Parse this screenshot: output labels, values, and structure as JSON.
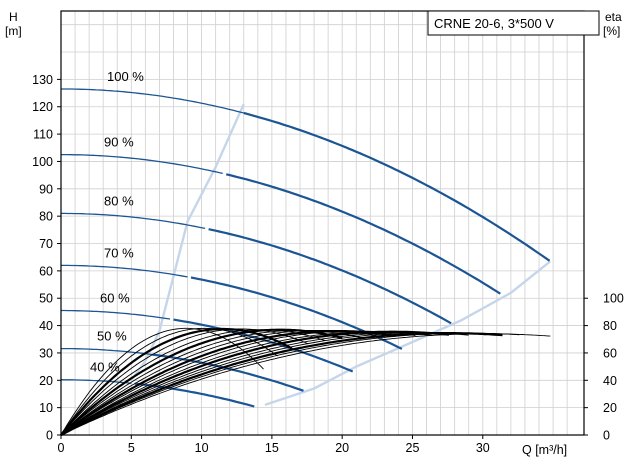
{
  "chart_data": {
    "type": "line",
    "legend": "CRNE 20-6, 3*500 V",
    "legend_position": "top-right",
    "grid": true,
    "xlabel": "Q [m³/h]",
    "ylabel_left_1": "H",
    "ylabel_left_2": "[m]",
    "ylabel_right_1": "eta",
    "ylabel_right_2": "[%]",
    "xlim": [
      0,
      37.2
    ],
    "ylim": [
      0,
      155
    ],
    "x_ticks": [
      0,
      5,
      10,
      15,
      20,
      25,
      30
    ],
    "y_ticks": [
      0,
      10,
      20,
      30,
      40,
      50,
      60,
      70,
      80,
      90,
      100,
      110,
      120,
      130
    ],
    "eta_ticks": [
      {
        "eta": 0,
        "h": 0
      },
      {
        "eta": 20,
        "h": 10
      },
      {
        "eta": 40,
        "h": 20
      },
      {
        "eta": 60,
        "h": 30
      },
      {
        "eta": 80,
        "h": 40
      },
      {
        "eta": 100,
        "h": 50
      }
    ],
    "head_series": [
      {
        "name": "100 %",
        "h0": 126.5,
        "qmax": 34.8,
        "hmax": 63.5,
        "qb": 13
      },
      {
        "name": "90 %",
        "h0": 102.5,
        "qmax": 31.3,
        "hmax": 51.5,
        "qb": 11.7
      },
      {
        "name": "80 %",
        "h0": 81,
        "qmax": 27.8,
        "hmax": 40.7,
        "qb": 10.4
      },
      {
        "name": "70 %",
        "h0": 62,
        "qmax": 24.4,
        "hmax": 31.1,
        "qb": 9.1
      },
      {
        "name": "60 %",
        "h0": 45.5,
        "qmax": 20.9,
        "hmax": 22.9,
        "qb": 7.8
      },
      {
        "name": "50 %",
        "h0": 31.6,
        "qmax": 17.4,
        "hmax": 15.9,
        "qb": 6.5
      },
      {
        "name": "40 %",
        "h0": 20.2,
        "qmax": 13.9,
        "hmax": 10.2,
        "qb": 5.2
      }
    ],
    "limit_curves": [
      {
        "name": "min-speed-flow",
        "points": [
          [
            13,
            121
          ],
          [
            11,
            98
          ],
          [
            9,
            78
          ],
          [
            8,
            58
          ],
          [
            7,
            38
          ],
          [
            6,
            27
          ],
          [
            5,
            20
          ]
        ]
      },
      {
        "name": "max-flow",
        "points": [
          [
            14.5,
            11
          ],
          [
            18,
            17
          ],
          [
            21,
            25
          ],
          [
            25,
            34
          ],
          [
            28.5,
            42
          ],
          [
            32,
            52
          ],
          [
            34.8,
            63.5
          ]
        ]
      }
    ],
    "eta_series": [
      {
        "peak_q": 8.9,
        "peak_eta": 78,
        "end_q": 14.4
      },
      {
        "peak_q": 10.2,
        "peak_eta": 78,
        "end_q": 15.4
      },
      {
        "peak_q": 11.5,
        "peak_eta": 77.5,
        "end_q": 16.4
      },
      {
        "peak_q": 12.8,
        "peak_eta": 77.5,
        "end_q": 17.6
      },
      {
        "peak_q": 14.2,
        "peak_eta": 77,
        "end_q": 18.9
      },
      {
        "peak_q": 15.6,
        "peak_eta": 77,
        "end_q": 20.1
      },
      {
        "peak_q": 16.9,
        "peak_eta": 76.5,
        "end_q": 21.4
      },
      {
        "peak_q": 18.3,
        "peak_eta": 76.5,
        "end_q": 22.6
      },
      {
        "peak_q": 19.6,
        "peak_eta": 76,
        "end_q": 23.9
      },
      {
        "peak_q": 20.9,
        "peak_eta": 76,
        "end_q": 25.2
      },
      {
        "peak_q": 22.2,
        "peak_eta": 75.5,
        "end_q": 26.4
      },
      {
        "peak_q": 23.6,
        "peak_eta": 75.5,
        "end_q": 27.7
      },
      {
        "peak_q": 24.9,
        "peak_eta": 75,
        "end_q": 29
      },
      {
        "peak_q": 26.2,
        "peak_eta": 75,
        "end_q": 30.2
      },
      {
        "peak_q": 27.5,
        "peak_eta": 74.5,
        "end_q": 31.5
      },
      {
        "peak_q": 28.9,
        "peak_eta": 74.5,
        "end_q": 32.7
      },
      {
        "peak_q": 30.2,
        "peak_eta": 74,
        "end_q": 34.8
      }
    ],
    "colors": {
      "head": "#1c5594",
      "limit": "#c6d6ea",
      "eta": "#000000",
      "grid": "#cfcfcf",
      "axis": "#000000"
    }
  }
}
